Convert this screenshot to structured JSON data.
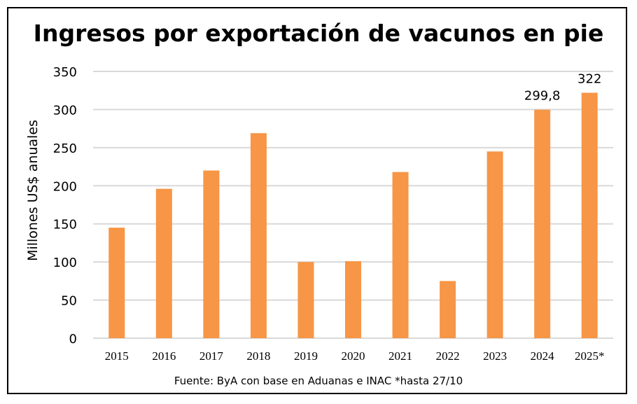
{
  "chart_data": {
    "type": "bar",
    "title": "Ingresos por exportación de vacunos en pie",
    "xlabel": "",
    "ylabel": "Millones US$ anuales",
    "categories": [
      "2015",
      "2016",
      "2017",
      "2018",
      "2019",
      "2020",
      "2021",
      "2022",
      "2023",
      "2024",
      "2025*"
    ],
    "values": [
      145,
      196,
      220,
      269,
      100,
      101,
      218,
      75,
      245,
      299.8,
      322
    ],
    "data_labels": [
      {
        "category": "2024",
        "text": "299,8"
      },
      {
        "category": "2025*",
        "text": "322"
      }
    ],
    "ylim": [
      0,
      350
    ],
    "yticks": [
      "0",
      "50",
      "100",
      "150",
      "200",
      "250",
      "300",
      "350"
    ],
    "grid": true,
    "legend": "none",
    "bar_color": "#F79646",
    "grid_color": "#D9D9D9",
    "source_note": "Fuente: ByA con base en Aduanas e INAC *hasta 27/10"
  }
}
